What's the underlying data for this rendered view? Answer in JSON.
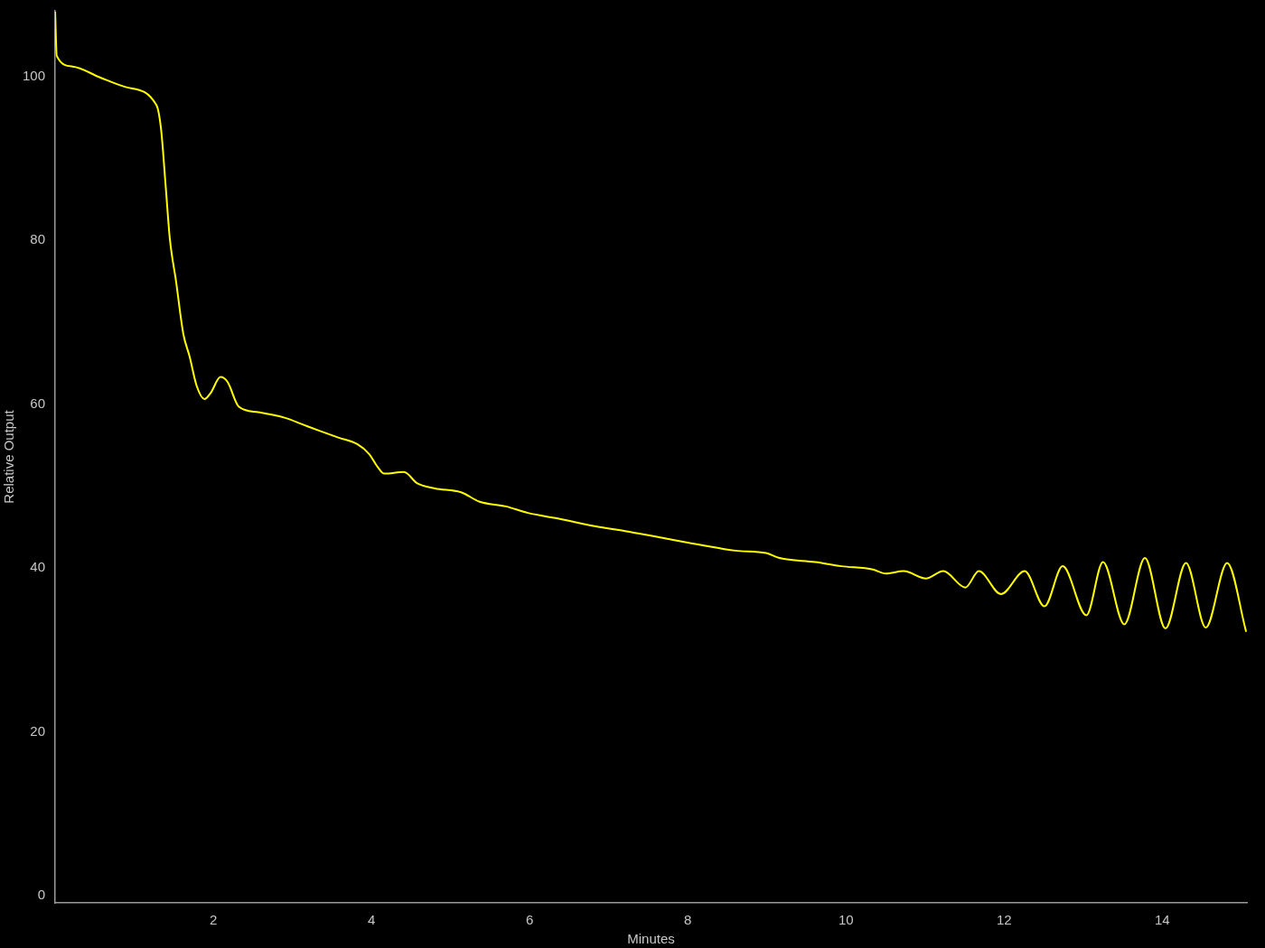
{
  "chart_data": {
    "type": "line",
    "xlabel": "Minutes",
    "ylabel": "Relative Output",
    "xlim": [
      0,
      15.07
    ],
    "xticks": [
      2,
      4,
      6,
      8,
      10,
      12,
      14
    ],
    "ylim": [
      -0.9,
      108
    ],
    "yticks": [
      0,
      20,
      40,
      60,
      80,
      100
    ],
    "grid": false,
    "legend": false,
    "marker": "none",
    "line_style": "solid",
    "series": [
      {
        "color": "#ffff00",
        "x": [
          0,
          0.02,
          0.22,
          0.56,
          0.89,
          1.28,
          1.34,
          1.4,
          1.45,
          1.53,
          1.62,
          1.7,
          1.79,
          1.89,
          1.97,
          2.09,
          2.18,
          2.32,
          2.57,
          2.91,
          3.13,
          3.35,
          3.58,
          3.82,
          3.97,
          4.08,
          4.16,
          4.41,
          4.58,
          4.8,
          5.14,
          5.36,
          5.7,
          5.98,
          6.37,
          6.82,
          7.26,
          7.71,
          8.16,
          8.6,
          8.99,
          9.16,
          9.61,
          9.94,
          10.34,
          10.5,
          10.73,
          11.01,
          11.23,
          11.51,
          11.68,
          11.96,
          12.26,
          12.51,
          12.74,
          13.04,
          13.25,
          13.52,
          13.78,
          14.04,
          14.3,
          14.55,
          14.82,
          15.06
        ],
        "values": [
          107.9,
          102.5,
          101.2,
          99.9,
          98.7,
          96.5,
          93.5,
          86.3,
          80.2,
          74.9,
          68.6,
          65.8,
          62.2,
          60.6,
          61.4,
          63.3,
          62.7,
          59.7,
          59.0,
          58.3,
          57.5,
          56.7,
          55.9,
          55.1,
          53.9,
          52.3,
          51.5,
          51.7,
          50.3,
          49.7,
          49.2,
          48.1,
          47.5,
          46.7,
          46.0,
          45.1,
          44.4,
          43.6,
          42.8,
          42.1,
          41.8,
          41.2,
          40.7,
          40.2,
          39.8,
          39.3,
          39.6,
          38.7,
          39.6,
          37.6,
          39.6,
          36.8,
          39.6,
          35.3,
          40.2,
          34.2,
          40.7,
          33.1,
          41.2,
          32.6,
          40.6,
          32.7,
          40.6,
          32.2
        ]
      }
    ]
  }
}
